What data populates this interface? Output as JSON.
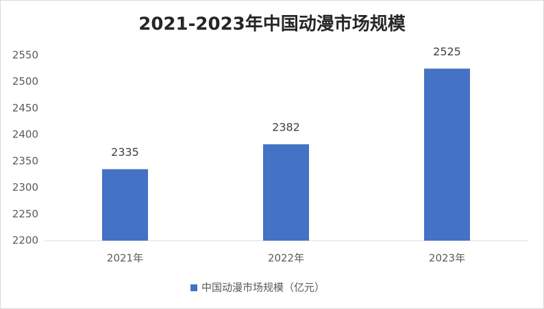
{
  "chart_data": {
    "type": "bar",
    "title": "2021-2023年中国动漫市场规模",
    "categories": [
      "2021年",
      "2022年",
      "2023年"
    ],
    "series": [
      {
        "name": "中国动漫市场规模（亿元）",
        "color": "#4472c4",
        "values": [
          2335,
          2382,
          2525
        ]
      }
    ],
    "ylim": [
      2200,
      2550
    ],
    "yticks": [
      2200,
      2250,
      2300,
      2350,
      2400,
      2450,
      2500,
      2550
    ],
    "grid": false,
    "legend": "bottom",
    "data_labels": true
  }
}
